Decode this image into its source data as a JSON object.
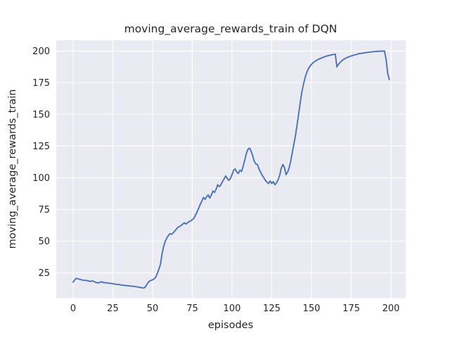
{
  "figure": {
    "title": "moving_average_rewards_train of DQN",
    "xlabel": "episodes",
    "ylabel": "moving_average_rewards_train"
  },
  "colors": {
    "line": "#4C72B0",
    "plot_background": "#EAEAF2",
    "grid": "#FFFFFF",
    "text": "#262626",
    "figure_background": "#FFFFFF"
  },
  "chart_data": {
    "type": "line",
    "title": "moving_average_rewards_train of DQN",
    "xlabel": "episodes",
    "ylabel": "moving_average_rewards_train",
    "x_ticks": [
      0,
      25,
      50,
      75,
      100,
      125,
      150,
      175,
      200
    ],
    "y_ticks": [
      25,
      50,
      75,
      100,
      125,
      150,
      175,
      200
    ],
    "xlim": [
      -10.6,
      209.3
    ],
    "ylim": [
      5.0,
      208.6
    ],
    "grid": true,
    "legend_position": "none",
    "series": [
      {
        "name": "moving_average_rewards_train",
        "x_is_index": true,
        "x_start": 0,
        "x_step": 1,
        "y": [
          17.7,
          19.5,
          20.7,
          20.3,
          20.0,
          19.6,
          19.3,
          19.2,
          19.0,
          18.9,
          18.5,
          18.2,
          18.6,
          18.3,
          17.6,
          17.2,
          17.1,
          17.6,
          18.0,
          17.4,
          17.1,
          17.3,
          16.9,
          16.7,
          16.7,
          16.5,
          16.2,
          16.0,
          15.9,
          15.7,
          15.5,
          15.3,
          15.2,
          15.0,
          14.9,
          14.7,
          14.6,
          14.5,
          14.4,
          14.2,
          14.0,
          13.8,
          13.6,
          13.3,
          13.1,
          13.4,
          14.9,
          17.1,
          18.4,
          19.0,
          19.5,
          20.3,
          21.5,
          24.5,
          28.0,
          32.0,
          40.0,
          46.0,
          50.0,
          52.5,
          54.5,
          56.0,
          55.5,
          56.5,
          58.0,
          59.5,
          61.0,
          61.5,
          62.5,
          63.5,
          64.5,
          63.5,
          64.5,
          65.5,
          66.0,
          67.0,
          68.0,
          70.5,
          73.0,
          76.0,
          79.0,
          81.5,
          84.5,
          83.0,
          85.0,
          86.5,
          84.0,
          86.5,
          89.5,
          88.5,
          91.0,
          94.5,
          93.0,
          94.5,
          97.0,
          99.0,
          101.5,
          99.5,
          98.0,
          99.5,
          102.5,
          106.0,
          107.0,
          104.5,
          103.5,
          106.0,
          105.0,
          109.0,
          114.0,
          119.0,
          122.5,
          123.5,
          121.0,
          117.5,
          113.0,
          111.0,
          110.5,
          107.0,
          104.5,
          102.0,
          100.0,
          98.0,
          96.5,
          95.5,
          97.5,
          95.5,
          97.0,
          94.5,
          96.0,
          98.5,
          102.0,
          107.5,
          110.5,
          108.0,
          102.5,
          104.5,
          108.0,
          113.5,
          120.5,
          127.0,
          134.0,
          142.0,
          151.0,
          160.0,
          168.0,
          174.0,
          179.0,
          183.0,
          186.0,
          188.0,
          189.5,
          190.7,
          191.7,
          192.5,
          193.2,
          193.8,
          194.4,
          194.9,
          195.4,
          195.8,
          196.2,
          196.5,
          196.8,
          197.1,
          197.3,
          197.5,
          187.5,
          189.5,
          191.0,
          192.2,
          193.2,
          194.0,
          194.6,
          195.2,
          195.7,
          196.1,
          196.5,
          196.9,
          197.2,
          197.5,
          198.1,
          198.1,
          198.3,
          198.5,
          198.7,
          198.9,
          199.1,
          199.2,
          199.4,
          199.5,
          199.6,
          199.7,
          199.8,
          199.9,
          199.9,
          200.0,
          200.0,
          193.0,
          182.0,
          177.5
        ]
      }
    ]
  }
}
